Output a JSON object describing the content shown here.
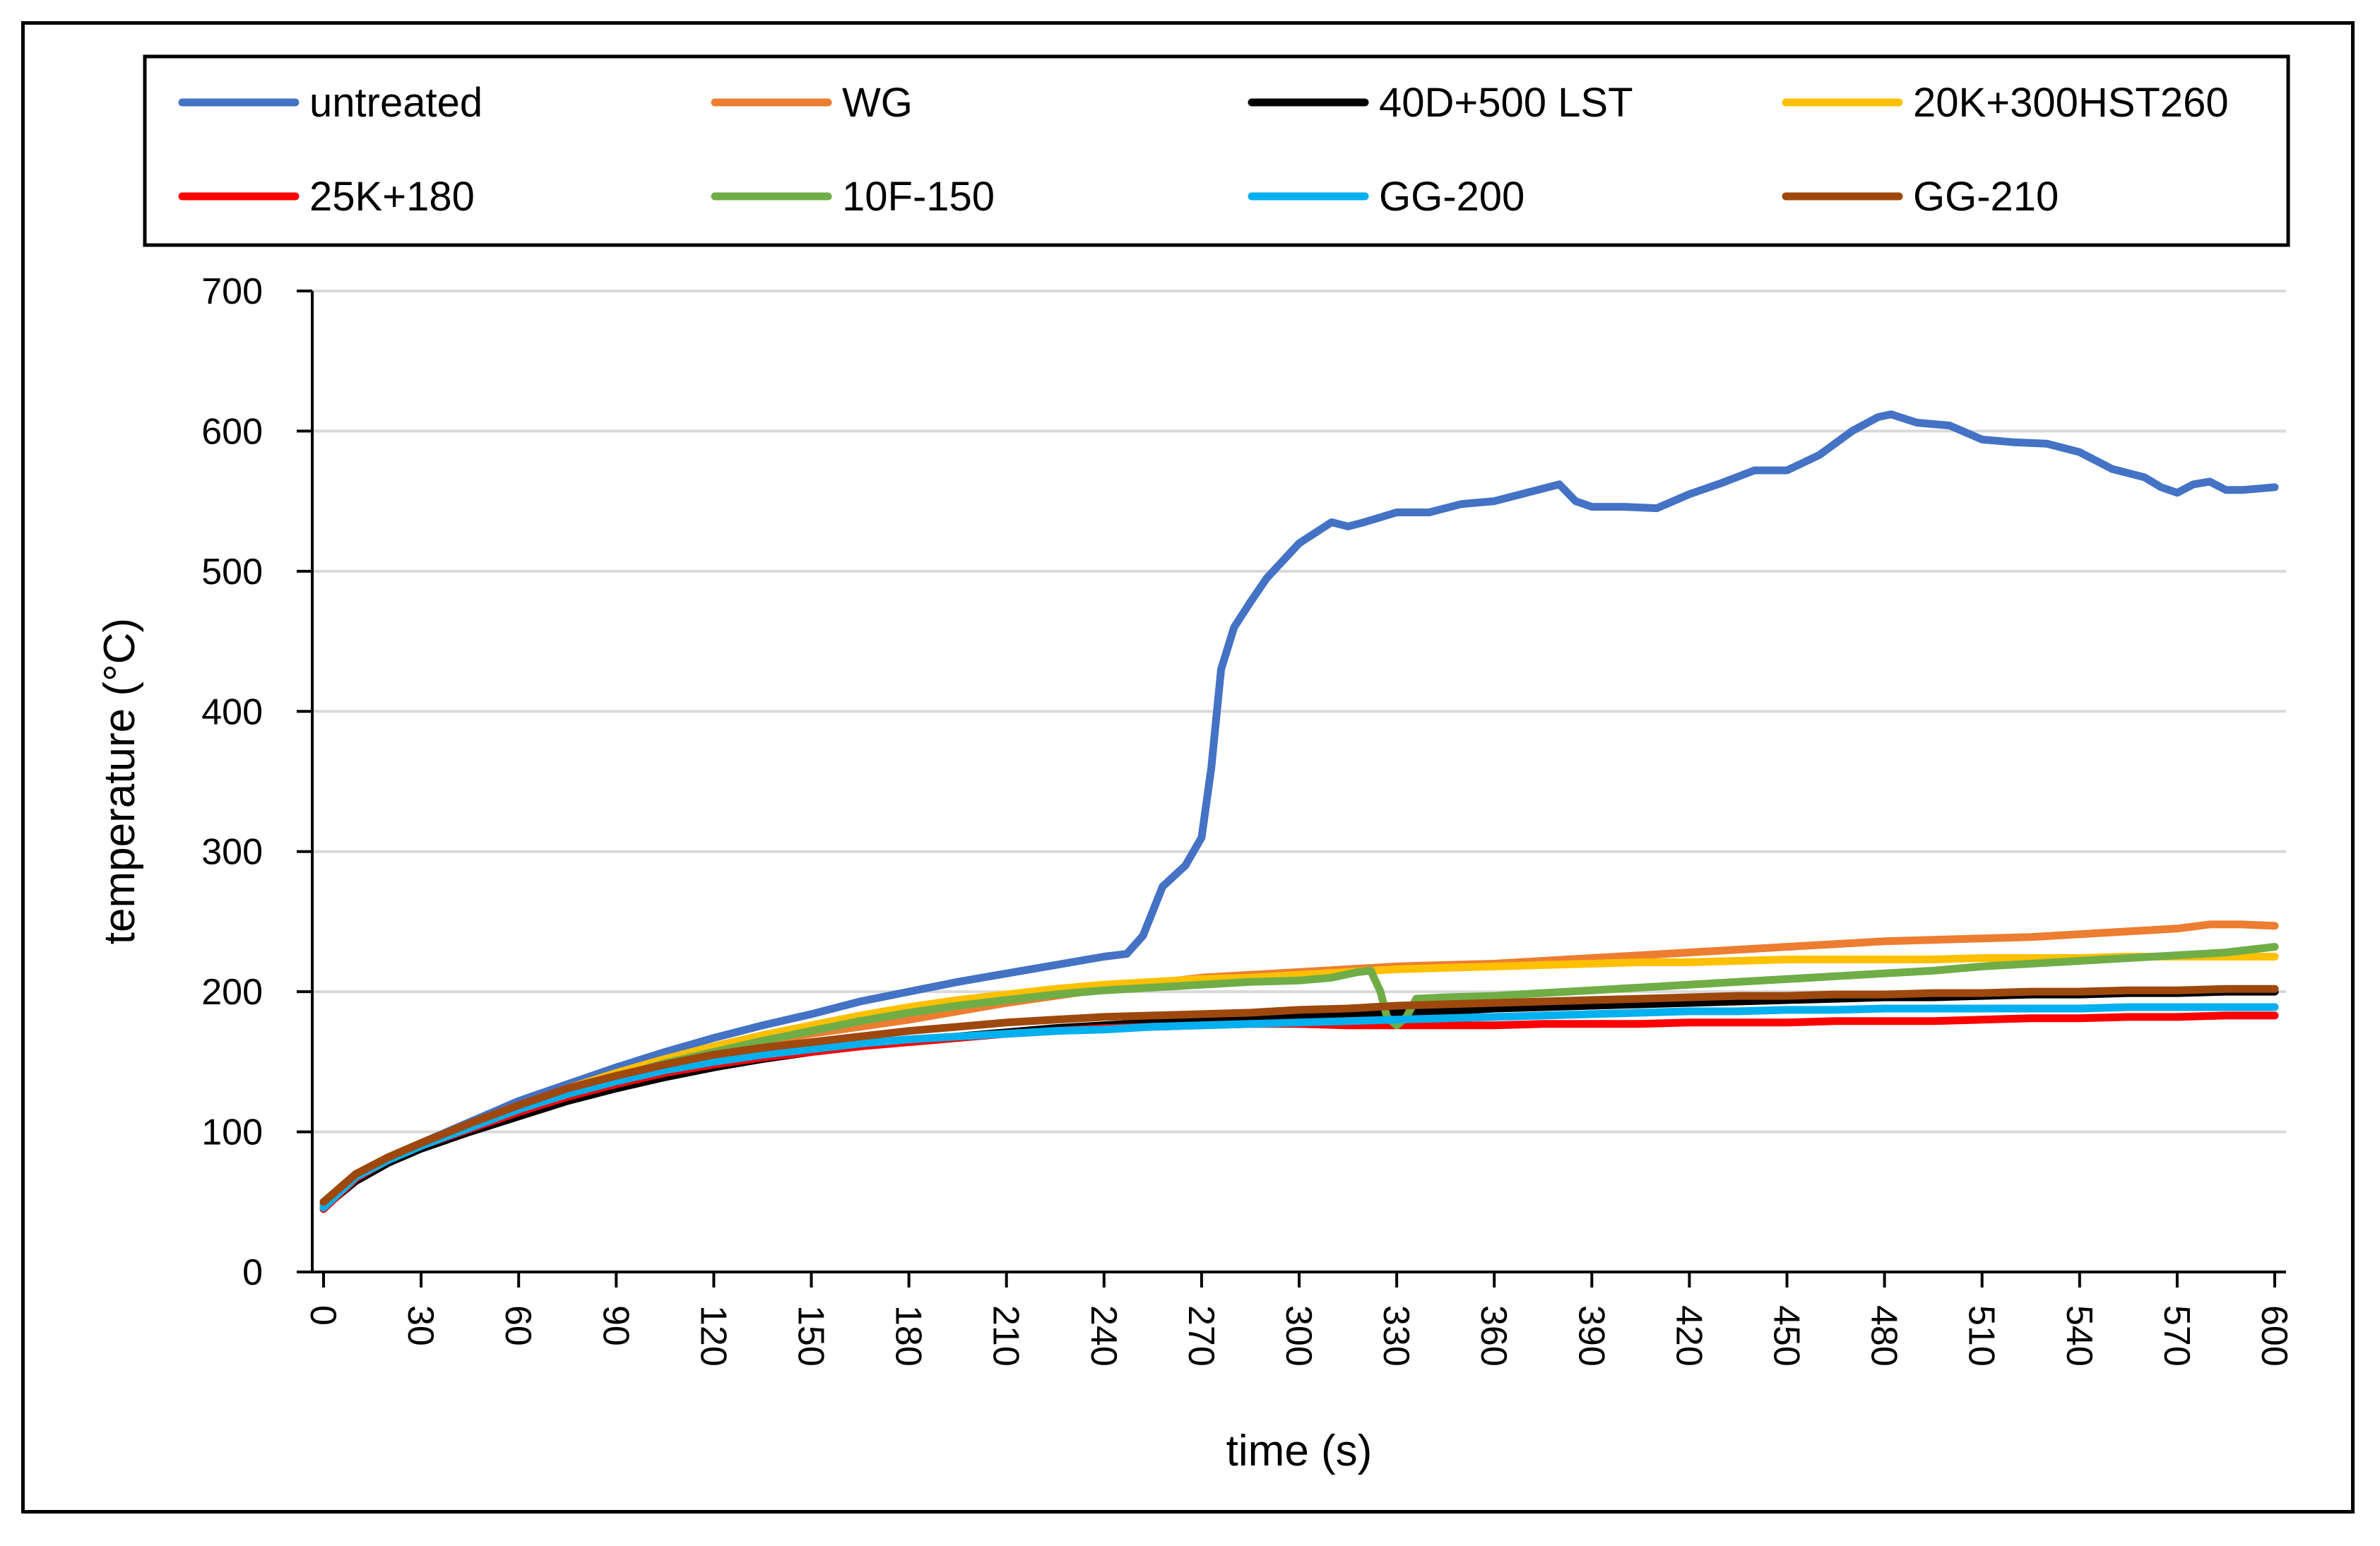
{
  "chart_data": {
    "type": "line",
    "title": "",
    "xlabel": "time (s)",
    "ylabel": "temperature (°C)",
    "xlim": [
      0,
      600
    ],
    "ylim": [
      0,
      700
    ],
    "xticks": [
      "0",
      "30",
      "60",
      "90",
      "120",
      "150",
      "180",
      "210",
      "240",
      "270",
      "300",
      "330",
      "360",
      "390",
      "420",
      "450",
      "480",
      "510",
      "540",
      "570",
      "600"
    ],
    "yticks": [
      "0",
      "100",
      "200",
      "300",
      "400",
      "500",
      "600",
      "700"
    ],
    "grid": "horizontal",
    "legend_position": "top",
    "series": [
      {
        "name": "untreated",
        "color": "#4472C4",
        "x": [
          0,
          5,
          10,
          20,
          30,
          45,
          60,
          75,
          90,
          105,
          120,
          135,
          150,
          165,
          180,
          195,
          210,
          225,
          240,
          247,
          252,
          258,
          265,
          270,
          273,
          276,
          280,
          285,
          290,
          300,
          310,
          315,
          320,
          330,
          340,
          350,
          360,
          370,
          380,
          385,
          390,
          400,
          410,
          420,
          430,
          440,
          450,
          460,
          470,
          478,
          482,
          490,
          500,
          510,
          520,
          530,
          540,
          550,
          560,
          565,
          570,
          575,
          580,
          585,
          590,
          600
        ],
        "y": [
          45,
          60,
          70,
          82,
          92,
          107,
          122,
          134,
          146,
          157,
          167,
          176,
          184,
          193,
          200,
          207,
          213,
          219,
          225,
          227,
          240,
          275,
          290,
          310,
          360,
          430,
          460,
          478,
          495,
          520,
          535,
          532,
          535,
          542,
          542,
          548,
          550,
          556,
          562,
          550,
          546,
          546,
          545,
          555,
          563,
          572,
          572,
          583,
          600,
          610,
          612,
          606,
          604,
          594,
          592,
          591,
          585,
          573,
          567,
          560,
          556,
          562,
          564,
          558,
          558,
          560
        ]
      },
      {
        "name": "WG",
        "color": "#ED7D31",
        "x": [
          0,
          10,
          20,
          30,
          45,
          60,
          75,
          90,
          105,
          120,
          135,
          150,
          165,
          180,
          195,
          210,
          225,
          240,
          255,
          270,
          285,
          300,
          315,
          330,
          345,
          360,
          375,
          390,
          405,
          420,
          435,
          450,
          465,
          480,
          495,
          510,
          525,
          540,
          555,
          570,
          580,
          590,
          600
        ],
        "y": [
          48,
          70,
          82,
          92,
          105,
          118,
          130,
          140,
          150,
          158,
          164,
          170,
          175,
          180,
          186,
          192,
          197,
          202,
          206,
          210,
          212,
          214,
          216,
          218,
          219,
          220,
          222,
          224,
          226,
          228,
          230,
          232,
          234,
          236,
          237,
          238,
          239,
          241,
          243,
          245,
          248,
          248,
          247
        ]
      },
      {
        "name": "40D+500 LST",
        "color": "#000000",
        "x": [
          0,
          10,
          20,
          30,
          45,
          60,
          75,
          90,
          105,
          120,
          135,
          150,
          165,
          180,
          195,
          210,
          225,
          240,
          255,
          270,
          285,
          300,
          315,
          330,
          345,
          360,
          375,
          390,
          405,
          420,
          435,
          450,
          465,
          480,
          495,
          510,
          525,
          540,
          555,
          570,
          585,
          600
        ],
        "y": [
          46,
          65,
          78,
          88,
          100,
          111,
          122,
          131,
          139,
          146,
          152,
          157,
          161,
          165,
          168,
          171,
          174,
          176,
          178,
          179,
          180,
          182,
          184,
          185,
          186,
          188,
          189,
          190,
          191,
          192,
          193,
          194,
          195,
          196,
          196,
          197,
          198,
          198,
          199,
          199,
          200,
          200
        ]
      },
      {
        "name": "20K+300HST260",
        "color": "#FFC000",
        "x": [
          0,
          10,
          20,
          30,
          45,
          60,
          75,
          90,
          105,
          120,
          135,
          150,
          165,
          180,
          195,
          210,
          225,
          240,
          255,
          270,
          285,
          300,
          315,
          330,
          345,
          360,
          375,
          390,
          405,
          420,
          435,
          450,
          465,
          480,
          495,
          510,
          525,
          540,
          555,
          570,
          585,
          600
        ],
        "y": [
          48,
          70,
          82,
          92,
          105,
          118,
          131,
          142,
          152,
          161,
          169,
          176,
          183,
          189,
          194,
          198,
          202,
          205,
          207,
          209,
          210,
          212,
          214,
          216,
          217,
          218,
          219,
          220,
          221,
          221,
          222,
          223,
          223,
          223,
          223,
          224,
          224,
          224,
          225,
          225,
          225,
          225
        ]
      },
      {
        "name": "25K+180",
        "color": "#FF0000",
        "x": [
          0,
          10,
          20,
          30,
          45,
          60,
          75,
          90,
          105,
          120,
          135,
          150,
          165,
          180,
          195,
          210,
          225,
          240,
          255,
          270,
          285,
          300,
          315,
          330,
          345,
          360,
          375,
          390,
          405,
          420,
          435,
          450,
          465,
          480,
          495,
          510,
          525,
          540,
          555,
          570,
          585,
          600
        ],
        "y": [
          45,
          67,
          80,
          90,
          102,
          114,
          125,
          134,
          142,
          148,
          153,
          157,
          161,
          164,
          167,
          170,
          172,
          174,
          175,
          176,
          177,
          177,
          176,
          176,
          176,
          176,
          177,
          177,
          177,
          178,
          178,
          178,
          179,
          179,
          179,
          180,
          181,
          181,
          182,
          182,
          183,
          183
        ]
      },
      {
        "name": "10F-150",
        "color": "#70AD47",
        "x": [
          0,
          10,
          20,
          30,
          45,
          60,
          75,
          90,
          105,
          120,
          135,
          150,
          165,
          180,
          195,
          210,
          225,
          240,
          255,
          270,
          285,
          300,
          310,
          318,
          322,
          325,
          327,
          330,
          333,
          336,
          345,
          360,
          375,
          390,
          405,
          420,
          435,
          450,
          465,
          480,
          495,
          510,
          525,
          540,
          555,
          570,
          585,
          600
        ],
        "y": [
          48,
          68,
          80,
          90,
          103,
          117,
          129,
          139,
          149,
          157,
          165,
          172,
          179,
          185,
          190,
          194,
          198,
          201,
          203,
          205,
          207,
          208,
          210,
          214,
          215,
          200,
          182,
          176,
          182,
          195,
          196,
          197,
          199,
          201,
          203,
          205,
          207,
          209,
          211,
          213,
          215,
          218,
          220,
          222,
          224,
          226,
          228,
          232
        ]
      },
      {
        "name": "GG-200",
        "color": "#00B0F0",
        "x": [
          0,
          10,
          20,
          30,
          45,
          60,
          75,
          90,
          105,
          120,
          135,
          150,
          165,
          180,
          195,
          210,
          225,
          240,
          255,
          270,
          285,
          300,
          315,
          330,
          345,
          360,
          375,
          390,
          405,
          420,
          435,
          450,
          465,
          480,
          495,
          510,
          525,
          540,
          555,
          570,
          585,
          600
        ],
        "y": [
          46,
          68,
          80,
          90,
          103,
          116,
          127,
          136,
          144,
          150,
          155,
          159,
          163,
          166,
          168,
          170,
          172,
          173,
          175,
          176,
          177,
          178,
          179,
          180,
          181,
          182,
          183,
          184,
          185,
          186,
          186,
          187,
          187,
          188,
          188,
          188,
          188,
          188,
          189,
          189,
          189,
          189
        ]
      },
      {
        "name": "GG-210",
        "color": "#9E480E",
        "x": [
          0,
          10,
          20,
          30,
          45,
          60,
          75,
          90,
          105,
          120,
          135,
          150,
          165,
          180,
          195,
          210,
          225,
          240,
          255,
          270,
          285,
          300,
          315,
          330,
          345,
          360,
          375,
          390,
          405,
          420,
          435,
          450,
          465,
          480,
          495,
          510,
          525,
          540,
          555,
          570,
          585,
          600
        ],
        "y": [
          50,
          70,
          82,
          92,
          106,
          119,
          131,
          140,
          148,
          155,
          160,
          164,
          168,
          172,
          175,
          178,
          180,
          182,
          183,
          184,
          185,
          187,
          188,
          190,
          191,
          192,
          193,
          194,
          195,
          196,
          197,
          197,
          198,
          198,
          199,
          199,
          200,
          200,
          201,
          201,
          202,
          202
        ]
      }
    ]
  }
}
